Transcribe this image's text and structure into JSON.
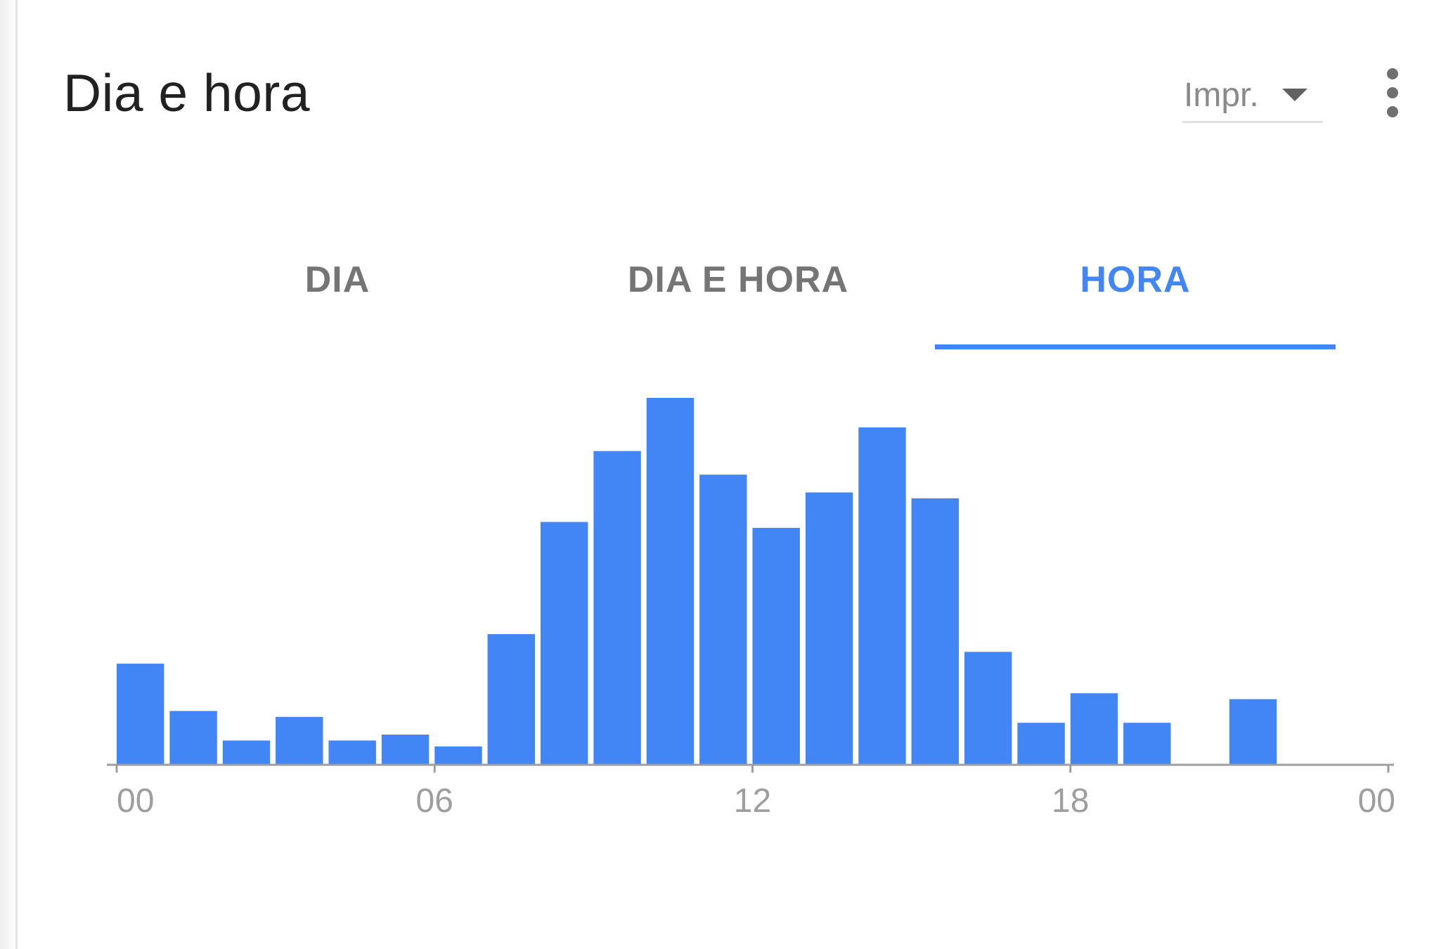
{
  "card": {
    "title": "Dia e hora",
    "metric_selector": {
      "selected": "Impr."
    },
    "more_menu_icon": "more-vert-icon"
  },
  "tabs": [
    {
      "label": "DIA",
      "active": false
    },
    {
      "label": "DIA E HORA",
      "active": false
    },
    {
      "label": "HORA",
      "active": true
    }
  ],
  "colors": {
    "accent": "#4285f4",
    "bar": "#4285f4",
    "axis": "#9e9e9e"
  },
  "chart_data": {
    "type": "bar",
    "title": "",
    "xlabel": "",
    "ylabel": "",
    "categories": [
      "00",
      "01",
      "02",
      "03",
      "04",
      "05",
      "06",
      "07",
      "08",
      "09",
      "10",
      "11",
      "12",
      "13",
      "14",
      "15",
      "16",
      "17",
      "18",
      "19",
      "20",
      "21",
      "22",
      "23"
    ],
    "values": [
      17,
      9,
      4,
      8,
      4,
      5,
      3,
      22,
      41,
      53,
      62,
      49,
      40,
      46,
      57,
      45,
      19,
      7,
      12,
      7,
      0,
      11,
      0,
      0
    ],
    "x_tick_labels": [
      "00",
      "06",
      "12",
      "18",
      "00"
    ],
    "x_tick_hours": [
      0,
      6,
      12,
      18,
      24
    ],
    "ylim": [
      0,
      62
    ],
    "grid": false,
    "legend": "none"
  }
}
